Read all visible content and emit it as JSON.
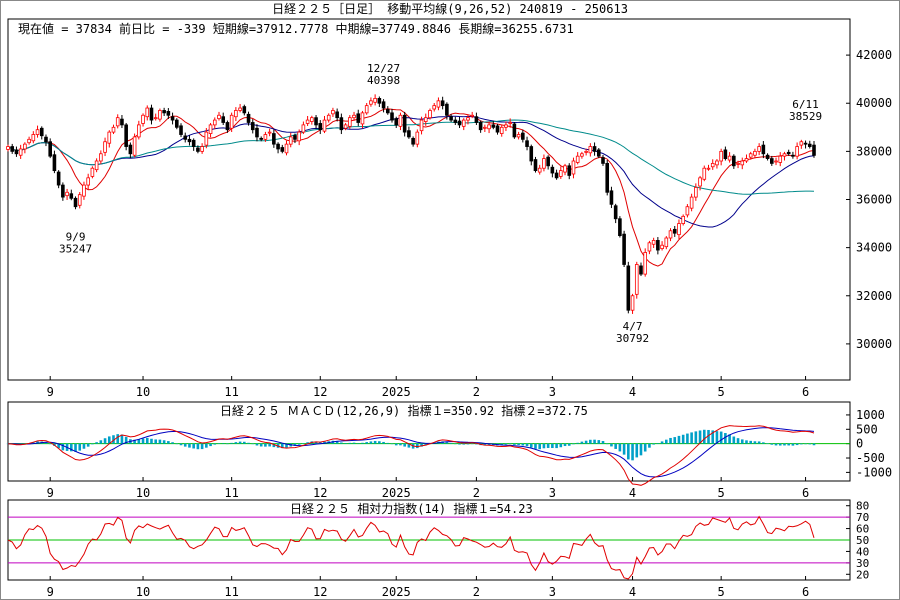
{
  "header": {
    "title": "日経２２５［日足］ 移動平均線(9,26,52) 240819 - 250613",
    "info": "現在値 = 37834 前日比 = -339 短期線=37912.7778 中期線=37749.8846 長期線=36255.6731"
  },
  "colors": {
    "up_candle": "#ff0000",
    "down_candle": "#000000",
    "short_ma": "#e00000",
    "mid_ma": "#00008b",
    "long_ma": "#008b8b",
    "macd_hist": "#00a0c8",
    "macd_signal": "#0000c0",
    "macd_line": "#e00000",
    "rsi_line": "#e00000",
    "rsi_upper": "#c000c0",
    "rsi_mid": "#00c000",
    "zero_line": "#00c000"
  },
  "x_labels": [
    "9",
    "10",
    "11",
    "12",
    "2025",
    "2",
    "3",
    "4",
    "5",
    "6"
  ],
  "chart_data": [
    {
      "type": "candlestick",
      "title": "日経２２５［日足］ 移動平均線(9,26,52)",
      "ylim": [
        28500,
        43500
      ],
      "y_ticks": [
        30000,
        32000,
        34000,
        36000,
        38000,
        40000,
        42000
      ],
      "annotations": [
        {
          "label": "9/9",
          "value": "35247"
        },
        {
          "label": "12/27",
          "value": "40398"
        },
        {
          "label": "4/7",
          "value": "30792"
        },
        {
          "label": "6/11",
          "value": "38529"
        }
      ],
      "close": [
        38200,
        38000,
        37900,
        38100,
        38300,
        38500,
        38700,
        38900,
        38650,
        38400,
        37800,
        37200,
        36600,
        36100,
        36300,
        36050,
        35700,
        36200,
        36600,
        36900,
        37300,
        37600,
        37900,
        38400,
        38800,
        39000,
        39400,
        39100,
        38200,
        37900,
        38600,
        39100,
        39500,
        39800,
        39300,
        39400,
        39700,
        39600,
        39500,
        39300,
        39000,
        38700,
        38500,
        38400,
        38200,
        38000,
        38200,
        38800,
        39100,
        39300,
        39500,
        39200,
        38900,
        39500,
        39700,
        39800,
        39600,
        39200,
        38900,
        38600,
        38500,
        38700,
        38800,
        38300,
        38100,
        38000,
        38300,
        38600,
        38500,
        38800,
        39100,
        39300,
        39400,
        39100,
        38900,
        39300,
        39500,
        39700,
        39400,
        38900,
        39100,
        39400,
        39500,
        39200,
        39600,
        39900,
        40100,
        40200,
        40000,
        39800,
        39600,
        39300,
        39100,
        39500,
        38800,
        38600,
        38300,
        38800,
        39300,
        39400,
        39700,
        39900,
        40100,
        39900,
        39500,
        39300,
        39200,
        39100,
        39300,
        39400,
        39500,
        39200,
        38900,
        39000,
        39100,
        39000,
        38800,
        39000,
        39100,
        39200,
        38600,
        38700,
        38500,
        38200,
        37600,
        37200,
        37300,
        37700,
        37400,
        37100,
        36900,
        37200,
        37400,
        37000,
        37600,
        37800,
        37900,
        38000,
        38200,
        38000,
        37800,
        37500,
        36300,
        35800,
        35200,
        34500,
        33300,
        31400,
        32000,
        33300,
        32900,
        33800,
        34200,
        34300,
        33900,
        34100,
        34400,
        34700,
        34600,
        35000,
        35300,
        35700,
        36100,
        36500,
        36900,
        37300,
        37300,
        37500,
        37600,
        38000,
        37700,
        37800,
        37400,
        37500,
        37600,
        37700,
        37900,
        38000,
        38200,
        37900,
        37700,
        37500,
        37600,
        37800,
        37900,
        37900,
        37800,
        38200,
        38400,
        38300,
        38200,
        37834
      ],
      "ma": [
        {
          "name": "短期線",
          "period": 9,
          "last": 37912.7778
        },
        {
          "name": "中期線",
          "period": 26,
          "last": 37749.8846
        },
        {
          "name": "長期線",
          "period": 52,
          "last": 36255.6731
        }
      ]
    },
    {
      "type": "line",
      "title": "日経２２５ ＭＡＣＤ(12,26,9) 指標１=350.92 指標２=372.75",
      "ylim": [
        -1300,
        1450
      ],
      "y_ticks": [
        1000,
        500,
        0,
        -500,
        -1000
      ],
      "series": [
        {
          "name": "指標１",
          "last": 350.92
        },
        {
          "name": "指標２",
          "last": 372.75
        }
      ]
    },
    {
      "type": "line",
      "title": "日経２２５ 相対力指数(14) 指標１=54.23",
      "ylim": [
        15,
        85
      ],
      "y_ticks": [
        80,
        70,
        60,
        50,
        40,
        30,
        20
      ],
      "guides": [
        70,
        50,
        30
      ],
      "series": [
        {
          "name": "指標１",
          "last": 54.23
        }
      ]
    }
  ]
}
